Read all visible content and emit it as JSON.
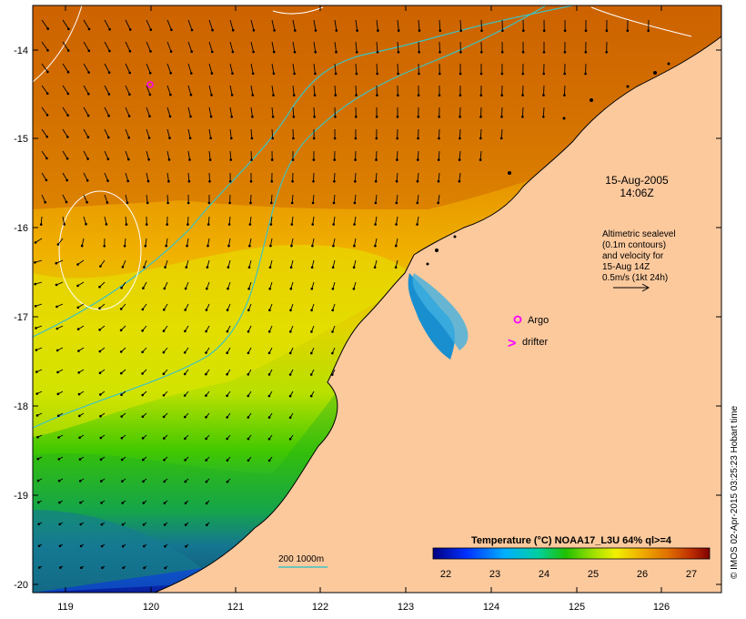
{
  "annotation": {
    "date": "15-Aug-2005",
    "time": "14:06Z",
    "altimetry_lines": [
      "Altimetric sealevel",
      "(0.1m contours)",
      "and velocity for",
      "15-Aug 14Z",
      "0.5m/s (1kt 24h)"
    ]
  },
  "legend": {
    "argo_label": "Argo",
    "drifter_label": "drifter",
    "drifter_symbol": ">",
    "bathymetry_label": "200  1000m"
  },
  "colorbar": {
    "title": "Temperature (°C) NOAA17_L3U 64% ql>=4",
    "ticks": [
      "22",
      "23",
      "24",
      "25",
      "26",
      "27"
    ]
  },
  "axes": {
    "x_ticks": [
      "119",
      "120",
      "121",
      "122",
      "123",
      "124",
      "125",
      "126"
    ],
    "y_ticks": [
      "-14",
      "-15",
      "-16",
      "-17",
      "-18",
      "-19",
      "-20"
    ]
  },
  "credit": "© IMOS 02-Apr-2015 03:25:23 Hobart time",
  "colors": {
    "land": "#fcc99d",
    "argo_marker": "#ff00ff",
    "bathymetry_contour": "#3ec3c3",
    "sealevel_contour": "#ffffff",
    "vectors": "#000000"
  }
}
